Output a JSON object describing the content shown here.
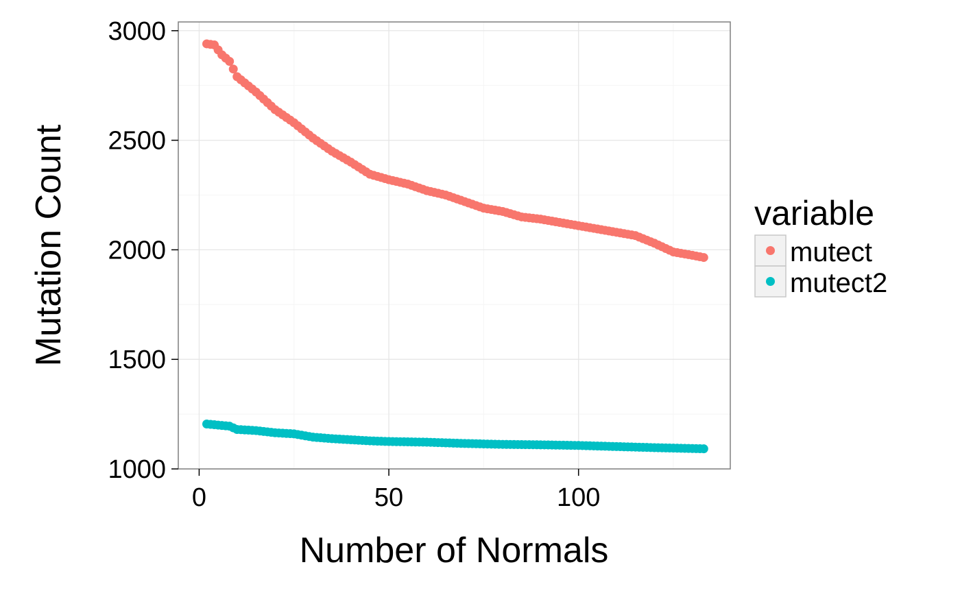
{
  "chart_data": {
    "type": "scatter",
    "title": "",
    "xlabel": "Number of Normals",
    "ylabel": "Mutation Count",
    "xlim": [
      -5.5,
      140
    ],
    "ylim": [
      1000,
      3040
    ],
    "x_ticks": [
      0,
      50,
      100
    ],
    "y_ticks": [
      1000,
      1500,
      2000,
      2500,
      3000
    ],
    "x_tick_labels": [
      "0",
      "50",
      "100"
    ],
    "y_tick_labels": [
      "1000",
      "1500",
      "2000",
      "2500",
      "3000"
    ],
    "grid": true,
    "legend": {
      "title": "variable",
      "position": "right"
    },
    "series": [
      {
        "name": "mutect",
        "color": "#F8766D",
        "anchors": [
          [
            2,
            2940
          ],
          [
            4,
            2935
          ],
          [
            6,
            2890
          ],
          [
            8,
            2860
          ],
          [
            10,
            2790
          ],
          [
            15,
            2720
          ],
          [
            20,
            2640
          ],
          [
            25,
            2580
          ],
          [
            30,
            2510
          ],
          [
            35,
            2450
          ],
          [
            40,
            2400
          ],
          [
            45,
            2345
          ],
          [
            50,
            2320
          ],
          [
            55,
            2300
          ],
          [
            60,
            2270
          ],
          [
            65,
            2250
          ],
          [
            70,
            2220
          ],
          [
            75,
            2190
          ],
          [
            80,
            2175
          ],
          [
            85,
            2150
          ],
          [
            90,
            2140
          ],
          [
            95,
            2125
          ],
          [
            100,
            2110
          ],
          [
            105,
            2095
          ],
          [
            110,
            2080
          ],
          [
            115,
            2065
          ],
          [
            120,
            2030
          ],
          [
            125,
            1990
          ],
          [
            130,
            1975
          ],
          [
            133,
            1965
          ]
        ]
      },
      {
        "name": "mutect2",
        "color": "#00BFC4",
        "anchors": [
          [
            2,
            1205
          ],
          [
            5,
            1200
          ],
          [
            8,
            1195
          ],
          [
            10,
            1180
          ],
          [
            15,
            1175
          ],
          [
            20,
            1165
          ],
          [
            25,
            1160
          ],
          [
            30,
            1145
          ],
          [
            35,
            1138
          ],
          [
            40,
            1133
          ],
          [
            45,
            1128
          ],
          [
            50,
            1125
          ],
          [
            60,
            1122
          ],
          [
            70,
            1116
          ],
          [
            80,
            1112
          ],
          [
            90,
            1110
          ],
          [
            100,
            1107
          ],
          [
            110,
            1102
          ],
          [
            120,
            1097
          ],
          [
            133,
            1092
          ]
        ]
      }
    ]
  }
}
